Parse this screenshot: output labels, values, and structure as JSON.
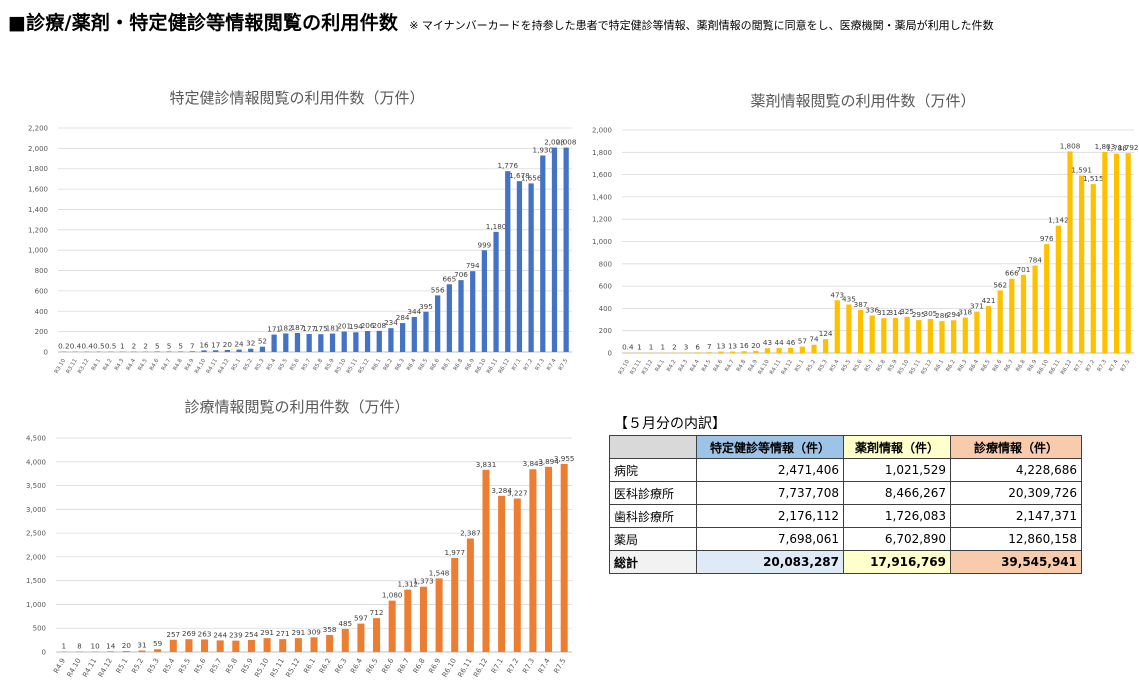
{
  "header": {
    "title": "■診療/薬剤・特定健診等情報閲覧の利用件数",
    "note": "※ マイナンバーカードを持参した患者で特定健診等情報、薬剤情報の閲覧に同意をし、医療機関・薬局が利用した件数"
  },
  "colors": {
    "blue": "#4472C4",
    "gold": "#FFC000",
    "orange": "#ED7D31",
    "th_blue": "#9DC3E6",
    "th_yellow": "#FFFFCC",
    "th_orange": "#F8CBAD",
    "total_blue": "#DEEBF7",
    "total_yellow": "#FFFFCC",
    "total_orange": "#F8CBAD"
  },
  "chart_data": [
    {
      "type": "bar",
      "title": "特定健診情報閲覧の利用件数（万件）",
      "ylim": [
        0,
        2200
      ],
      "yticks": [
        "0",
        "200",
        "400",
        "600",
        "800",
        "1,000",
        "1,200",
        "1,400",
        "1,600",
        "1,800",
        "2,000",
        "2,200"
      ],
      "categories": [
        "R3.10",
        "R3.11",
        "R3.12",
        "R4.1",
        "R4.2",
        "R4.3",
        "R4.4",
        "R4.5",
        "R4.6",
        "R4.7",
        "R4.8",
        "R4.9",
        "R4.10",
        "R4.11",
        "R4.12",
        "R5.1",
        "R5.2",
        "R5.3",
        "R5.4",
        "R5.5",
        "R5.6",
        "R5.7",
        "R5.8",
        "R5.9",
        "R5.10",
        "R5.11",
        "R5.12",
        "R6.1",
        "R6.2",
        "R6.3",
        "R6.4",
        "R6.5",
        "R6.6",
        "R6.7",
        "R6.8",
        "R6.9",
        "R6.10",
        "R6.11",
        "R6.12",
        "R7.1",
        "R7.2",
        "R7.3",
        "R7.4",
        "R7.5"
      ],
      "values": [
        0.2,
        0.4,
        0.4,
        0.5,
        0.5,
        1,
        2,
        2,
        5,
        5,
        5,
        7,
        16,
        17,
        20,
        24,
        32,
        52,
        171,
        182,
        187,
        177,
        175,
        181,
        201,
        194,
        206,
        208,
        234,
        284,
        344,
        395,
        556,
        665,
        706,
        794,
        999,
        1180,
        1776,
        1678,
        1656,
        1930,
        2008,
        2008
      ],
      "labels": [
        "0.2",
        "0.4",
        "0.4",
        "0.5",
        "0.5",
        "1",
        "2",
        "2",
        "5",
        "5",
        "5",
        "7",
        "16",
        "17",
        "20",
        "24",
        "32",
        "52",
        "171",
        "182",
        "187",
        "177",
        "175",
        "181",
        "201",
        "194",
        "206",
        "208",
        "234",
        "284",
        "344",
        "395",
        "556",
        "665",
        "706",
        "794",
        "999",
        "1,180",
        "1,776",
        "1,678",
        "1,656",
        "1,930",
        "2,008",
        "2,008"
      ],
      "grid": true,
      "legend": "none"
    },
    {
      "type": "bar",
      "title": "薬剤情報閲覧の利用件数（万件）",
      "ylim": [
        0,
        2000
      ],
      "yticks": [
        "0",
        "200",
        "400",
        "600",
        "800",
        "1,000",
        "1,200",
        "1,400",
        "1,600",
        "1,800",
        "2,000"
      ],
      "categories": [
        "R3.10",
        "R3.11",
        "R3.12",
        "R4.1",
        "R4.2",
        "R4.3",
        "R4.4",
        "R4.5",
        "R4.6",
        "R4.7",
        "R4.8",
        "R4.9",
        "R4.10",
        "R4.11",
        "R4.12",
        "R5.1",
        "R5.2",
        "R5.3",
        "R5.4",
        "R5.5",
        "R5.6",
        "R5.7",
        "R5.8",
        "R5.9",
        "R5.10",
        "R5.11",
        "R5.12",
        "R6.1",
        "R6.2",
        "R6.3",
        "R6.4",
        "R6.5",
        "R6.6",
        "R6.7",
        "R6.8",
        "R6.9",
        "R6.10",
        "R6.11",
        "R6.12",
        "R7.1",
        "R7.2",
        "R7.3",
        "R7.4",
        "R7.5"
      ],
      "values": [
        0.4,
        1,
        1,
        1,
        2,
        3,
        6,
        7,
        13,
        13,
        16,
        20,
        43,
        44,
        46,
        57,
        74,
        124,
        473,
        435,
        387,
        336,
        312,
        314,
        325,
        295,
        305,
        286,
        294,
        318,
        371,
        421,
        562,
        666,
        701,
        784,
        976,
        1142,
        1808,
        1591,
        1515,
        1803,
        1788,
        1792
      ],
      "labels": [
        "0.4",
        "1",
        "1",
        "1",
        "2",
        "3",
        "6",
        "7",
        "13",
        "13",
        "16",
        "20",
        "43",
        "44",
        "46",
        "57",
        "74",
        "124",
        "473",
        "435",
        "387",
        "336",
        "312",
        "314",
        "325",
        "295",
        "305",
        "286",
        "294",
        "318",
        "371",
        "421",
        "562",
        "666",
        "701",
        "784",
        "976",
        "1,142",
        "1,808",
        "1,591",
        "1,515",
        "1,803",
        "1,788",
        "1,792"
      ],
      "grid": true,
      "legend": "none"
    },
    {
      "type": "bar",
      "title": "診療情報閲覧の利用件数（万件）",
      "ylim": [
        0,
        4500
      ],
      "yticks": [
        "0",
        "500",
        "1,000",
        "1,500",
        "2,000",
        "2,500",
        "3,000",
        "3,500",
        "4,000",
        "4,500"
      ],
      "categories": [
        "R4.9",
        "R4.10",
        "R4.11",
        "R4.12",
        "R5.1",
        "R5.2",
        "R5.3",
        "R5.4",
        "R5.5",
        "R5.6",
        "R5.7",
        "R5.8",
        "R5.9",
        "R5.10",
        "R5.11",
        "R5.12",
        "R6.1",
        "R6.2",
        "R6.3",
        "R6.4",
        "R6.5",
        "R6.6",
        "R6.7",
        "R6.8",
        "R6.9",
        "R6.10",
        "R6.11",
        "R6.12",
        "R7.1",
        "R7.2",
        "R7.3",
        "R7.4",
        "R7.5"
      ],
      "values": [
        1,
        8,
        10,
        14,
        20,
        31,
        59,
        257,
        269,
        263,
        244,
        239,
        254,
        291,
        271,
        291,
        309,
        358,
        485,
        597,
        712,
        1080,
        1312,
        1373,
        1548,
        1977,
        2387,
        3831,
        3284,
        3227,
        3843,
        3894,
        3955
      ],
      "labels": [
        "1",
        "8",
        "10",
        "14",
        "20",
        "31",
        "59",
        "257",
        "269",
        "263",
        "244",
        "239",
        "254",
        "291",
        "271",
        "291",
        "309",
        "358",
        "485",
        "597",
        "712",
        "1,080",
        "1,312",
        "1,373",
        "1,548",
        "1,977",
        "2,387",
        "3,831",
        "3,284",
        "3,227",
        "3,843",
        "3,894",
        "3,955"
      ],
      "grid": true,
      "legend": "none"
    }
  ],
  "breakdown": {
    "title": "【５月分の内訳】",
    "headers": [
      "特定健診等情報（件）",
      "薬剤情報（件）",
      "診療情報（件）"
    ],
    "rows": [
      {
        "label": "病院",
        "v1": "2,471,406",
        "v2": "1,021,529",
        "v3": "4,228,686"
      },
      {
        "label": "医科診療所",
        "v1": "7,737,708",
        "v2": "8,466,267",
        "v3": "20,309,726"
      },
      {
        "label": "歯科診療所",
        "v1": "2,176,112",
        "v2": "1,726,083",
        "v3": "2,147,371"
      },
      {
        "label": "薬局",
        "v1": "7,698,061",
        "v2": "6,702,890",
        "v3": "12,860,158"
      }
    ],
    "total": {
      "label": "総計",
      "v1": "20,083,287",
      "v2": "17,916,769",
      "v3": "39,545,941"
    }
  }
}
